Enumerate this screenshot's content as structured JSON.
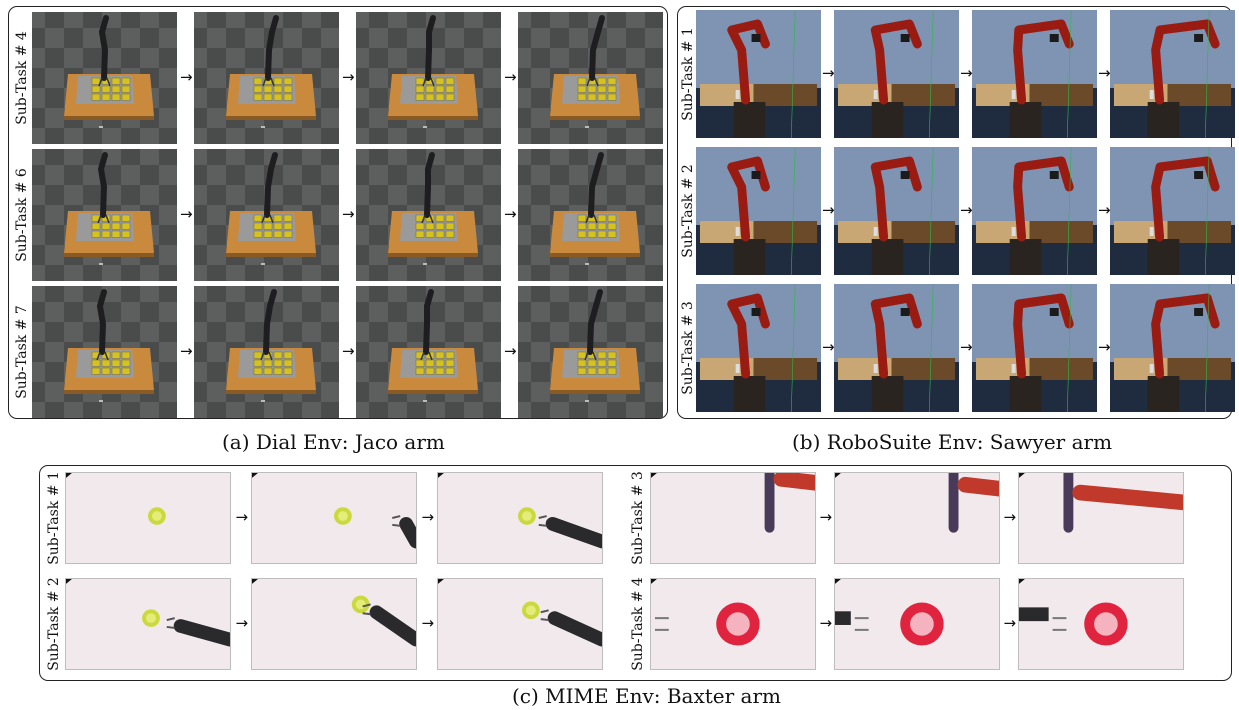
{
  "panels": {
    "dial": {
      "caption": "(a) Dial Env: Jaco arm",
      "rows": [
        {
          "label": "Sub-Task # 4"
        },
        {
          "label": "Sub-Task # 6"
        },
        {
          "label": "Sub-Task # 7"
        }
      ],
      "frames_per_row": 4
    },
    "robosuite": {
      "caption": "(b) RoboSuite Env: Sawyer arm",
      "rows": [
        {
          "label": "Sub-Task # 1"
        },
        {
          "label": "Sub-Task # 2"
        },
        {
          "label": "Sub-Task # 3"
        }
      ],
      "frames_per_row": 4
    },
    "mime": {
      "caption": "(c) MIME Env: Baxter arm",
      "left_rows": [
        {
          "label": "Sub-Task # 1"
        },
        {
          "label": "Sub-Task # 2"
        }
      ],
      "right_rows": [
        {
          "label": "Sub-Task # 3"
        },
        {
          "label": "Sub-Task # 4"
        }
      ],
      "frames_per_row": 3
    }
  },
  "arrow_glyph": "→",
  "colors": {
    "dial_floor": "#4a4c4c",
    "dial_board": "#c98a3e",
    "dial_keys": "#d6c21e",
    "jaco_arm": "#1e1e20",
    "sawyer_arm": "#9a1b12",
    "sim_sky": "#7f93b2",
    "mime_table": "#f1e9ec",
    "mime_bowl": "#e0233e",
    "mime_cup": "#cbd93e",
    "baxter_gripper": "#2a2a2d"
  }
}
